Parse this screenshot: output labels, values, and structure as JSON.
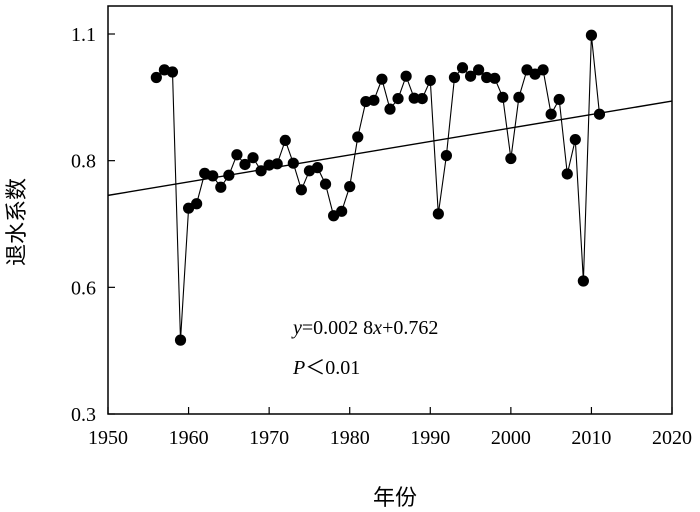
{
  "chart_data": {
    "type": "scatter",
    "xlabel": "年份",
    "ylabel": "退水系数",
    "xlim": [
      1950,
      2020
    ],
    "xticks": [
      1950,
      1960,
      1970,
      1980,
      1990,
      2000,
      2010,
      2020
    ],
    "yticks": [
      {
        "value": 0.3,
        "label": "0.3"
      },
      {
        "value": 0.6,
        "label": "0.6"
      },
      {
        "value": 0.8,
        "label": "0.8"
      },
      {
        "value": 1.1,
        "label": "1.1"
      }
    ],
    "scale_note": "y axis ticks are evenly spaced although their labels are not (0.3, 0.6, 0.8, 1.1)",
    "series": [
      {
        "style": "line-with-markers",
        "x": [
          1956,
          1957,
          1958,
          1959,
          1960,
          1961,
          1962,
          1963,
          1964,
          1965,
          1966,
          1967,
          1968,
          1969,
          1970,
          1971,
          1972,
          1973,
          1974,
          1975,
          1976,
          1977,
          1978,
          1979,
          1980,
          1981,
          1982,
          1983,
          1984,
          1985,
          1986,
          1987,
          1988,
          1989,
          1990,
          1991,
          1992,
          1993,
          1994,
          1995,
          1996,
          1997,
          1998,
          1999,
          2000,
          2001,
          2002,
          2003,
          2004,
          2005,
          2006,
          2007,
          2008,
          2009,
          2010,
          2011
        ],
        "y": [
          0.997,
          1.015,
          1.01,
          0.475,
          0.725,
          0.732,
          0.78,
          0.776,
          0.758,
          0.777,
          0.814,
          0.794,
          0.807,
          0.784,
          0.793,
          0.795,
          0.848,
          0.796,
          0.754,
          0.784,
          0.789,
          0.763,
          0.713,
          0.72,
          0.759,
          0.856,
          0.94,
          0.943,
          0.993,
          0.922,
          0.947,
          1.0,
          0.948,
          0.947,
          0.99,
          0.716,
          0.812,
          0.997,
          1.02,
          1.0,
          1.015,
          0.997,
          0.995,
          0.95,
          0.805,
          0.95,
          1.015,
          1.005,
          1.015,
          0.91,
          0.945,
          0.779,
          0.85,
          0.61,
          1.097,
          0.91
        ]
      }
    ],
    "trendline": {
      "slope": 0.0028,
      "intercept": 0.762
    },
    "annotations": {
      "equation_y": "y",
      "equation_body": "=0.002 8",
      "equation_x": "x",
      "equation_tail": "+0.762",
      "p_label": "P",
      "p_value": "＜0.01"
    }
  }
}
